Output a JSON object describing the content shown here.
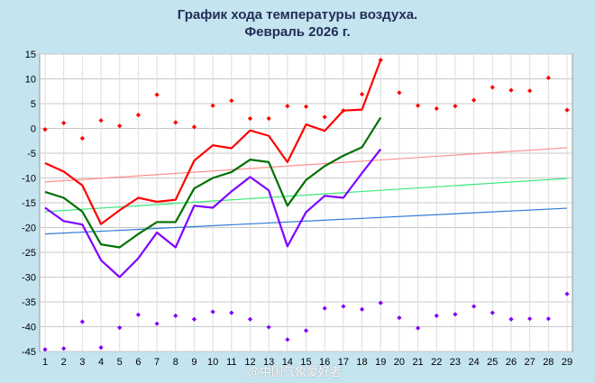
{
  "chart_data": {
    "type": "line",
    "title": "График хода температуры воздуха.",
    "subtitle": "Февраль 2026 г.",
    "x": [
      1,
      2,
      3,
      4,
      5,
      6,
      7,
      8,
      9,
      10,
      11,
      12,
      13,
      14,
      15,
      16,
      17,
      18,
      19,
      20,
      21,
      22,
      23,
      24,
      25,
      26,
      27,
      28,
      29
    ],
    "xlim": [
      1,
      29
    ],
    "ylim": [
      -45,
      15
    ],
    "yticks": [
      15,
      10,
      5,
      0,
      -5,
      -10,
      -15,
      -20,
      -25,
      -30,
      -35,
      -40,
      -45
    ],
    "grid": true,
    "series": [
      {
        "kind": "line",
        "color": "#ff0000",
        "x": [
          1,
          2,
          3,
          4,
          5,
          6,
          7,
          8,
          9,
          10,
          11,
          12,
          13,
          14,
          15,
          16,
          17,
          18,
          19
        ],
        "values": [
          -7,
          -8.7,
          -11.5,
          -19.3,
          -16.5,
          -14,
          -14.8,
          -14.4,
          -6.5,
          -3.4,
          -4,
          -0.4,
          -1.5,
          -6.8,
          0.8,
          -0.5,
          3.6,
          3.8,
          13.8
        ]
      },
      {
        "kind": "line",
        "color": "#007000",
        "x": [
          1,
          2,
          3,
          4,
          5,
          6,
          7,
          8,
          9,
          10,
          11,
          12,
          13,
          14,
          15,
          16,
          17,
          18,
          19
        ],
        "values": [
          -12.8,
          -14,
          -16.8,
          -23.4,
          -24,
          -21.3,
          -18.9,
          -18.9,
          -12.1,
          -10,
          -8.8,
          -6.3,
          -6.8,
          -15.6,
          -10.4,
          -7.6,
          -5.5,
          -3.8,
          2.2
        ]
      },
      {
        "kind": "line",
        "color": "#7f00ff",
        "x": [
          1,
          2,
          3,
          4,
          5,
          6,
          7,
          8,
          9,
          10,
          11,
          12,
          13,
          14,
          15,
          16,
          17,
          18,
          19
        ],
        "values": [
          -16,
          -18.7,
          -19.4,
          -26.6,
          -30,
          -26.2,
          -21,
          -24,
          -15.6,
          -16,
          -12.7,
          -9.8,
          -12.5,
          -23.8,
          -16.9,
          -13.6,
          -14,
          -9,
          -4.2
        ]
      },
      {
        "kind": "points",
        "color": "#ff0000",
        "x": [
          1,
          2,
          3,
          4,
          5,
          6,
          7,
          8,
          9,
          10,
          11,
          12,
          13,
          14,
          15,
          16,
          17,
          18,
          19,
          20,
          21,
          22,
          23,
          24,
          25,
          26,
          27,
          28,
          29
        ],
        "values": [
          -0.2,
          1.1,
          -2,
          1.6,
          0.5,
          2.7,
          6.8,
          1.2,
          0.3,
          4.6,
          5.6,
          2,
          2,
          4.5,
          4.4,
          2.3,
          3.6,
          6.9,
          13.8,
          7.2,
          4.6,
          4,
          4.5,
          5.7,
          8.3,
          7.7,
          7.6,
          10.2,
          3.7
        ]
      },
      {
        "kind": "points",
        "color": "#7f00ff",
        "x": [
          1,
          2,
          3,
          4,
          5,
          6,
          7,
          8,
          9,
          10,
          11,
          12,
          13,
          14,
          15,
          16,
          17,
          18,
          19,
          20,
          21,
          22,
          23,
          24,
          25,
          26,
          27,
          28,
          29
        ],
        "values": [
          -44.6,
          -44.4,
          -39,
          -44.2,
          -40.2,
          -37.6,
          -39.4,
          -37.8,
          -38.5,
          -37,
          -37.2,
          -38.5,
          -40.1,
          -42.6,
          -40.8,
          -36.3,
          -35.9,
          -36.5,
          -35.2,
          -38.2,
          -40.3,
          -37.8,
          -37.5,
          -35.9,
          -37.2,
          -38.5,
          -38.4,
          -38.4,
          -33.4
        ]
      },
      {
        "kind": "line",
        "color": "#ff9090",
        "x": [
          1,
          29
        ],
        "values": [
          -10.8,
          -3.9
        ]
      },
      {
        "kind": "line",
        "color": "#38e878",
        "x": [
          1,
          29
        ],
        "values": [
          -16.8,
          -10.1
        ]
      },
      {
        "kind": "line",
        "color": "#2e7cd6",
        "x": [
          1,
          29
        ],
        "values": [
          -21.3,
          -16.1
        ]
      }
    ]
  },
  "watermark": "@中国气象爱好者"
}
